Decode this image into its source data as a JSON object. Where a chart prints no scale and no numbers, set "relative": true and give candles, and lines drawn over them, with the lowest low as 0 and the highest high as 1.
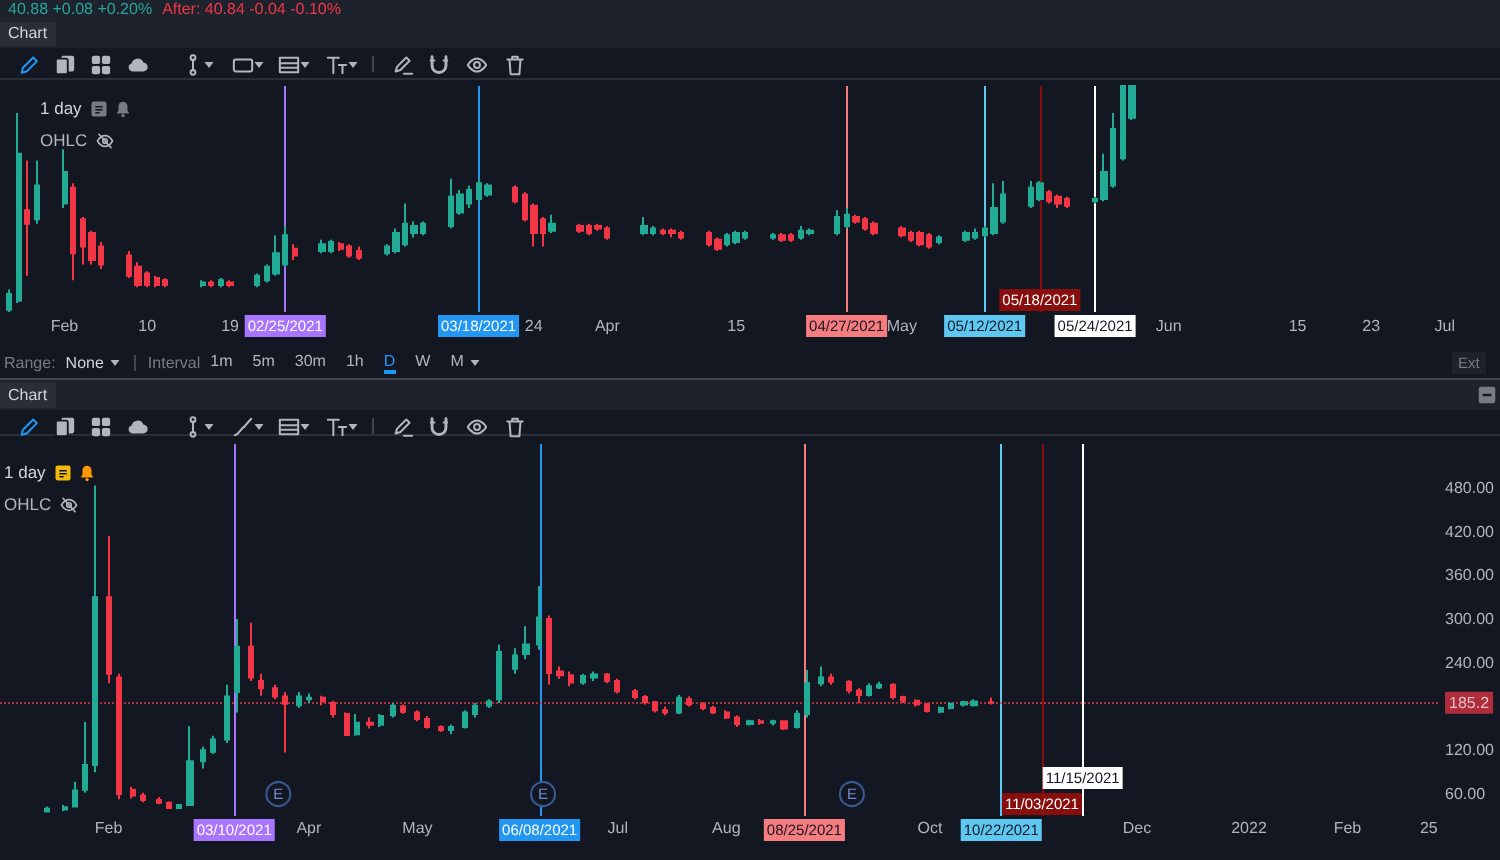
{
  "chart_data": [
    {
      "type": "candlestick",
      "title": "1 day",
      "annotations": [
        "40.88 +0.08 +0.20%",
        "After: 40.84 -0.04 -0.10%",
        "Chart",
        "OHLC",
        "Range:",
        "None",
        "Interval",
        "1m",
        "5m",
        "30m",
        "1h",
        "D",
        "W",
        "M",
        "Ext"
      ],
      "relative": true,
      "xlim": [
        "2021-01-25",
        "2021-07-07"
      ],
      "xticks": [
        {
          "value": "2021-02-01",
          "label": "Feb"
        },
        {
          "value": "2021-02-10",
          "label": "10"
        },
        {
          "value": "2021-02-19",
          "label": "19"
        },
        {
          "value": "2021-03-24",
          "label": "24"
        },
        {
          "value": "2021-04-01",
          "label": "Apr"
        },
        {
          "value": "2021-04-15",
          "label": "15"
        },
        {
          "value": "2021-05-03",
          "label": "May"
        },
        {
          "value": "2021-06-01",
          "label": "Jun"
        },
        {
          "value": "2021-06-15",
          "label": "15"
        },
        {
          "value": "2021-06-23",
          "label": "23"
        },
        {
          "value": "2021-07-01",
          "label": "Jul"
        }
      ],
      "ref_lines": [
        {
          "axis": "x",
          "value": "2021-02-25",
          "label": "02/25/2021",
          "color": "#a875ff"
        },
        {
          "axis": "x",
          "value": "2021-03-18",
          "label": "03/18/2021",
          "color": "#2196f3"
        },
        {
          "axis": "x",
          "value": "2021-04-27",
          "label": "04/27/2021",
          "color": "#f77c80"
        },
        {
          "axis": "x",
          "value": "2021-05-12",
          "label": "05/12/2021",
          "color": "#5ec8f2"
        },
        {
          "axis": "x",
          "value": "2021-05-18",
          "label": "05/18/2021",
          "color": "#880e0e"
        },
        {
          "axis": "x",
          "value": "2021-05-24",
          "label": "05/24/2021",
          "color": "#ffffff"
        }
      ],
      "x": [
        "2021-01-26",
        "2021-01-27",
        "2021-01-28",
        "2021-01-29",
        "2021-02-01",
        "2021-02-02",
        "2021-02-03",
        "2021-02-04",
        "2021-02-05",
        "2021-02-08",
        "2021-02-09",
        "2021-02-10",
        "2021-02-11",
        "2021-02-12",
        "2021-02-16",
        "2021-02-17",
        "2021-02-18",
        "2021-02-19",
        "2021-02-22",
        "2021-02-23",
        "2021-02-24",
        "2021-02-25",
        "2021-02-26",
        "2021-03-01",
        "2021-03-02",
        "2021-03-03",
        "2021-03-04",
        "2021-03-05",
        "2021-03-08",
        "2021-03-09",
        "2021-03-10",
        "2021-03-11",
        "2021-03-12",
        "2021-03-15",
        "2021-03-16",
        "2021-03-17",
        "2021-03-18",
        "2021-03-19",
        "2021-03-22",
        "2021-03-23",
        "2021-03-24",
        "2021-03-25",
        "2021-03-26",
        "2021-03-29",
        "2021-03-30",
        "2021-03-31",
        "2021-04-01",
        "2021-04-05",
        "2021-04-06",
        "2021-04-07",
        "2021-04-08",
        "2021-04-09",
        "2021-04-12",
        "2021-04-13",
        "2021-04-14",
        "2021-04-15",
        "2021-04-16",
        "2021-04-19",
        "2021-04-20",
        "2021-04-21",
        "2021-04-22",
        "2021-04-23",
        "2021-04-26",
        "2021-04-27",
        "2021-04-28",
        "2021-04-29",
        "2021-04-30",
        "2021-05-03",
        "2021-05-04",
        "2021-05-05",
        "2021-05-06",
        "2021-05-07",
        "2021-05-10",
        "2021-05-11",
        "2021-05-12",
        "2021-05-13",
        "2021-05-14",
        "2021-05-17",
        "2021-05-18",
        "2021-05-19",
        "2021-05-20",
        "2021-05-21",
        "2021-05-24",
        "2021-05-25",
        "2021-05-26",
        "2021-05-27",
        "2021-05-28"
      ],
      "ohlc": [
        [
          0.01,
          0.1,
          0,
          0.08
        ],
        [
          0.05,
          0.88,
          0.04,
          0.7
        ],
        [
          0.45,
          0.67,
          0.16,
          0.39
        ],
        [
          0.41,
          0.67,
          0.39,
          0.56
        ],
        [
          0.48,
          0.72,
          0.46,
          0.62
        ],
        [
          0.55,
          0.57,
          0.14,
          0.26
        ],
        [
          0.41,
          0.42,
          0.21,
          0.29
        ],
        [
          0.35,
          0.36,
          0.21,
          0.23
        ],
        [
          0.29,
          0.31,
          0.19,
          0.21
        ],
        [
          0.25,
          0.27,
          0.15,
          0.16
        ],
        [
          0.2,
          0.22,
          0.11,
          0.12
        ],
        [
          0.17,
          0.18,
          0.11,
          0.12
        ],
        [
          0.15,
          0.16,
          0.11,
          0.12
        ],
        [
          0.14,
          0.15,
          0.11,
          0.12
        ],
        [
          0.12,
          0.14,
          0.11,
          0.13
        ],
        [
          0.13,
          0.14,
          0.11,
          0.12
        ],
        [
          0.12,
          0.15,
          0.11,
          0.14
        ],
        [
          0.13,
          0.14,
          0.11,
          0.12
        ],
        [
          0.12,
          0.17,
          0.11,
          0.16
        ],
        [
          0.14,
          0.21,
          0.13,
          0.2
        ],
        [
          0.17,
          0.34,
          0.16,
          0.26
        ],
        [
          0.21,
          0.38,
          0.2,
          0.34
        ],
        [
          0.28,
          0.3,
          0.23,
          0.25
        ],
        [
          0.27,
          0.32,
          0.26,
          0.3
        ],
        [
          0.27,
          0.32,
          0.26,
          0.31
        ],
        [
          0.3,
          0.31,
          0.27,
          0.28
        ],
        [
          0.29,
          0.3,
          0.24,
          0.25
        ],
        [
          0.27,
          0.29,
          0.23,
          0.24
        ],
        [
          0.26,
          0.3,
          0.25,
          0.29
        ],
        [
          0.27,
          0.37,
          0.26,
          0.35
        ],
        [
          0.3,
          0.48,
          0.29,
          0.39
        ],
        [
          0.35,
          0.4,
          0.33,
          0.38
        ],
        [
          0.35,
          0.4,
          0.34,
          0.39
        ],
        [
          0.38,
          0.59,
          0.37,
          0.51
        ],
        [
          0.44,
          0.54,
          0.43,
          0.52
        ],
        [
          0.48,
          0.56,
          0.46,
          0.54
        ],
        [
          0.5,
          0.59,
          0.49,
          0.57
        ],
        [
          0.52,
          0.57,
          0.51,
          0.56
        ],
        [
          0.55,
          0.56,
          0.48,
          0.49
        ],
        [
          0.52,
          0.53,
          0.4,
          0.41
        ],
        [
          0.47,
          0.48,
          0.29,
          0.35
        ],
        [
          0.41,
          0.42,
          0.29,
          0.35
        ],
        [
          0.36,
          0.43,
          0.35,
          0.39
        ],
        [
          0.38,
          0.39,
          0.35,
          0.36
        ],
        [
          0.38,
          0.39,
          0.34,
          0.35
        ],
        [
          0.38,
          0.39,
          0.36,
          0.37
        ],
        [
          0.37,
          0.38,
          0.32,
          0.33
        ],
        [
          0.35,
          0.42,
          0.34,
          0.38
        ],
        [
          0.35,
          0.38,
          0.34,
          0.37
        ],
        [
          0.36,
          0.37,
          0.34,
          0.35
        ],
        [
          0.36,
          0.37,
          0.33,
          0.35
        ],
        [
          0.35,
          0.36,
          0.32,
          0.33
        ],
        [
          0.35,
          0.36,
          0.29,
          0.3
        ],
        [
          0.32,
          0.33,
          0.27,
          0.28
        ],
        [
          0.3,
          0.35,
          0.29,
          0.34
        ],
        [
          0.31,
          0.36,
          0.3,
          0.35
        ],
        [
          0.33,
          0.36,
          0.32,
          0.35
        ],
        [
          0.33,
          0.35,
          0.32,
          0.34
        ],
        [
          0.34,
          0.35,
          0.31,
          0.32
        ],
        [
          0.34,
          0.35,
          0.31,
          0.32
        ],
        [
          0.33,
          0.38,
          0.32,
          0.36
        ],
        [
          0.35,
          0.37,
          0.34,
          0.36
        ],
        [
          0.35,
          0.45,
          0.34,
          0.42
        ],
        [
          0.38,
          0.46,
          0.37,
          0.43
        ],
        [
          0.42,
          0.43,
          0.39,
          0.4
        ],
        [
          0.41,
          0.42,
          0.36,
          0.37
        ],
        [
          0.39,
          0.4,
          0.34,
          0.35
        ],
        [
          0.37,
          0.38,
          0.33,
          0.34
        ],
        [
          0.35,
          0.36,
          0.31,
          0.32
        ],
        [
          0.35,
          0.36,
          0.29,
          0.3
        ],
        [
          0.34,
          0.35,
          0.28,
          0.29
        ],
        [
          0.31,
          0.34,
          0.3,
          0.33
        ],
        [
          0.32,
          0.36,
          0.31,
          0.35
        ],
        [
          0.33,
          0.37,
          0.32,
          0.35
        ],
        [
          0.34,
          0.38,
          0.33,
          0.37
        ],
        [
          0.35,
          0.57,
          0.34,
          0.46
        ],
        [
          0.4,
          0.58,
          0.39,
          0.52
        ],
        [
          0.47,
          0.58,
          0.46,
          0.55
        ],
        [
          0.5,
          0.58,
          0.49,
          0.57
        ],
        [
          0.53,
          0.54,
          0.48,
          0.49
        ],
        [
          0.51,
          0.52,
          0.46,
          0.48
        ],
        [
          0.5,
          0.51,
          0.46,
          0.47
        ],
        [
          0.49,
          0.51,
          0.48,
          0.5
        ],
        [
          0.5,
          0.7,
          0.49,
          0.62
        ],
        [
          0.56,
          0.88,
          0.55,
          0.81
        ],
        [
          0.68,
          1,
          0.67,
          1
        ],
        [
          0.86,
          1,
          0.85,
          1
        ]
      ],
      "colors": [
        "#22ab94",
        "#22ab94",
        "#f23645",
        "#22ab94",
        "#22ab94",
        "#f23645",
        "#f23645",
        "#f23645",
        "#f23645",
        "#f23645",
        "#f23645",
        "#f23645",
        "#f23645",
        "#f23645",
        "#22ab94",
        "#f23645",
        "#22ab94",
        "#f23645",
        "#22ab94",
        "#22ab94",
        "#22ab94",
        "#22ab94",
        "#f23645",
        "#22ab94",
        "#22ab94",
        "#f23645",
        "#f23645",
        "#f23645",
        "#22ab94",
        "#22ab94",
        "#22ab94",
        "#22ab94",
        "#22ab94",
        "#22ab94",
        "#22ab94",
        "#22ab94",
        "#22ab94",
        "#22ab94",
        "#f23645",
        "#f23645",
        "#f23645",
        "#f23645",
        "#22ab94",
        "#f23645",
        "#f23645",
        "#f23645",
        "#f23645",
        "#22ab94",
        "#22ab94",
        "#f23645",
        "#f23645",
        "#f23645",
        "#f23645",
        "#f23645",
        "#22ab94",
        "#22ab94",
        "#22ab94",
        "#22ab94",
        "#f23645",
        "#f23645",
        "#22ab94",
        "#22ab94",
        "#22ab94",
        "#22ab94",
        "#f23645",
        "#f23645",
        "#f23645",
        "#f23645",
        "#f23645",
        "#f23645",
        "#f23645",
        "#22ab94",
        "#22ab94",
        "#22ab94",
        "#22ab94",
        "#22ab94",
        "#22ab94",
        "#22ab94",
        "#22ab94",
        "#f23645",
        "#f23645",
        "#f23645",
        "#22ab94",
        "#22ab94",
        "#22ab94",
        "#22ab94",
        "#22ab94"
      ]
    },
    {
      "type": "candlestick",
      "title": "1 day",
      "annotations": [
        "Chart",
        "OHLC",
        {
          "text": "E",
          "x": "2021-03-23"
        },
        {
          "text": "E",
          "x": "2021-06-09"
        },
        {
          "text": "E",
          "x": "2021-09-08"
        }
      ],
      "xlim": [
        "2020-12-31",
        "2022-02-28"
      ],
      "xticks": [
        {
          "value": "2021-02-01",
          "label": "Feb"
        },
        {
          "value": "2021-04-01",
          "label": "Apr"
        },
        {
          "value": "2021-05-03",
          "label": "May"
        },
        {
          "value": "2021-07-01",
          "label": "Jul"
        },
        {
          "value": "2021-08-02",
          "label": "Aug"
        },
        {
          "value": "2021-10-01",
          "label": "Oct"
        },
        {
          "value": "2021-12-01",
          "label": "Dec"
        },
        {
          "value": "2022-01-03",
          "label": "2022"
        },
        {
          "value": "2022-02-01",
          "label": "Feb"
        },
        {
          "value": "2022-02-25",
          "label": "25"
        }
      ],
      "ylim": [
        30,
        540
      ],
      "yticks": [
        {
          "value": 60,
          "label": "60.00"
        },
        {
          "value": 120,
          "label": "120.00"
        },
        {
          "value": 240,
          "label": "240.00"
        },
        {
          "value": 300,
          "label": "300.00"
        },
        {
          "value": 360,
          "label": "360.00"
        },
        {
          "value": 420,
          "label": "420.00"
        },
        {
          "value": 480,
          "label": "480.00"
        }
      ],
      "ref_lines": [
        {
          "axis": "x",
          "value": "2021-03-10",
          "label": "03/10/2021",
          "color": "#a875ff"
        },
        {
          "axis": "x",
          "value": "2021-06-08",
          "label": "06/08/2021",
          "color": "#2196f3"
        },
        {
          "axis": "x",
          "value": "2021-08-25",
          "label": "08/25/2021",
          "color": "#f77c80"
        },
        {
          "axis": "x",
          "value": "2021-10-22",
          "label": "10/22/2021",
          "color": "#5ec8f2"
        },
        {
          "axis": "x",
          "value": "2021-11-03",
          "label": "11/03/2021",
          "color": "#880e0e"
        },
        {
          "axis": "x",
          "value": "2021-11-15",
          "label": "11/15/2021",
          "color": "#ffffff"
        },
        {
          "axis": "y",
          "value": 185.2,
          "label": "185.2",
          "color": "#f23645",
          "line_style": "dotted"
        }
      ],
      "x": [
        "2021-01-14",
        "2021-01-19",
        "2021-01-22",
        "2021-01-25",
        "2021-01-28",
        "2021-02-01",
        "2021-02-04",
        "2021-02-08",
        "2021-02-11",
        "2021-02-16",
        "2021-02-19",
        "2021-02-22",
        "2021-02-25",
        "2021-03-01",
        "2021-03-04",
        "2021-03-08",
        "2021-03-11",
        "2021-03-15",
        "2021-03-18",
        "2021-03-22",
        "2021-03-25",
        "2021-03-29",
        "2021-04-01",
        "2021-04-05",
        "2021-04-08",
        "2021-04-12",
        "2021-04-15",
        "2021-04-19",
        "2021-04-22",
        "2021-04-26",
        "2021-04-29",
        "2021-05-03",
        "2021-05-06",
        "2021-05-10",
        "2021-05-13",
        "2021-05-17",
        "2021-05-20",
        "2021-05-24",
        "2021-05-27",
        "2021-06-01",
        "2021-06-04",
        "2021-06-08",
        "2021-06-11",
        "2021-06-14",
        "2021-06-17",
        "2021-06-21",
        "2021-06-24",
        "2021-06-28",
        "2021-07-01",
        "2021-07-06",
        "2021-07-09",
        "2021-07-12",
        "2021-07-15",
        "2021-07-19",
        "2021-07-22",
        "2021-07-26",
        "2021-07-29",
        "2021-08-02",
        "2021-08-05",
        "2021-08-09",
        "2021-08-12",
        "2021-08-16",
        "2021-08-19",
        "2021-08-23",
        "2021-08-26",
        "2021-08-30",
        "2021-09-02",
        "2021-09-07",
        "2021-09-10",
        "2021-09-13",
        "2021-09-16",
        "2021-09-20",
        "2021-09-23",
        "2021-09-27",
        "2021-09-30",
        "2021-10-04",
        "2021-10-07",
        "2021-10-11",
        "2021-10-14",
        "2021-10-19"
      ],
      "ohlc": [
        [
          36,
          43,
          35,
          40
        ],
        [
          39,
          45,
          37,
          42
        ],
        [
          43,
          77,
          42,
          65
        ],
        [
          66,
          159,
          62,
          100
        ],
        [
          100,
          483,
          90,
          330
        ],
        [
          330,
          414,
          212,
          225
        ],
        [
          220,
          225,
          53,
          60
        ],
        [
          66,
          70,
          54,
          58
        ],
        [
          58,
          62,
          49,
          52
        ],
        [
          52,
          56,
          46,
          48
        ],
        [
          48,
          50,
          40,
          41
        ],
        [
          41,
          46,
          40,
          45
        ],
        [
          45,
          153,
          44,
          105
        ],
        [
          105,
          125,
          95,
          120
        ],
        [
          118,
          140,
          115,
          135
        ],
        [
          135,
          210,
          130,
          194
        ],
        [
          200,
          300,
          172,
          262
        ],
        [
          262,
          295,
          215,
          220
        ],
        [
          215,
          225,
          195,
          205
        ],
        [
          205,
          210,
          190,
          194
        ],
        [
          194,
          200,
          117,
          184
        ],
        [
          182,
          200,
          178,
          194
        ],
        [
          190,
          198,
          185,
          192
        ],
        [
          192,
          195,
          182,
          187
        ],
        [
          185,
          188,
          165,
          170
        ],
        [
          170,
          172,
          140,
          141
        ],
        [
          142,
          170,
          140,
          158
        ],
        [
          158,
          165,
          150,
          155
        ],
        [
          155,
          170,
          152,
          167
        ],
        [
          168,
          185,
          165,
          181
        ],
        [
          180,
          183,
          170,
          173
        ],
        [
          172,
          175,
          160,
          163
        ],
        [
          163,
          167,
          150,
          152
        ],
        [
          152,
          154,
          145,
          148
        ],
        [
          148,
          155,
          142,
          152
        ],
        [
          152,
          175,
          150,
          172
        ],
        [
          170,
          185,
          165,
          181
        ],
        [
          181,
          190,
          178,
          187
        ],
        [
          190,
          265,
          185,
          255
        ],
        [
          232,
          260,
          225,
          250
        ],
        [
          252,
          290,
          245,
          265
        ],
        [
          265,
          345,
          258,
          302
        ],
        [
          300,
          305,
          210,
          226
        ],
        [
          228,
          235,
          218,
          223
        ],
        [
          223,
          228,
          208,
          213
        ],
        [
          213,
          225,
          210,
          222
        ],
        [
          220,
          228,
          215,
          224
        ],
        [
          224,
          226,
          212,
          215
        ],
        [
          215,
          218,
          198,
          201
        ],
        [
          201,
          204,
          190,
          193
        ],
        [
          193,
          196,
          183,
          186
        ],
        [
          186,
          188,
          172,
          175
        ],
        [
          175,
          180,
          168,
          172
        ],
        [
          172,
          196,
          170,
          192
        ],
        [
          190,
          194,
          180,
          183
        ],
        [
          183,
          186,
          175,
          178
        ],
        [
          178,
          181,
          170,
          172
        ],
        [
          172,
          175,
          163,
          165
        ],
        [
          165,
          168,
          152,
          156
        ],
        [
          156,
          162,
          154,
          160
        ],
        [
          160,
          163,
          155,
          158
        ],
        [
          158,
          162,
          154,
          160
        ],
        [
          160,
          161,
          148,
          150
        ],
        [
          152,
          175,
          150,
          170
        ],
        [
          170,
          230,
          165,
          212
        ],
        [
          212,
          235,
          208,
          220
        ],
        [
          220,
          225,
          210,
          214
        ],
        [
          214,
          216,
          198,
          202
        ],
        [
          202,
          205,
          185,
          196
        ],
        [
          196,
          212,
          194,
          208
        ],
        [
          206,
          214,
          204,
          210
        ],
        [
          210,
          212,
          190,
          193
        ],
        [
          193,
          195,
          185,
          188
        ],
        [
          188,
          190,
          180,
          183
        ],
        [
          183,
          185,
          172,
          174
        ],
        [
          173,
          180,
          171,
          178
        ],
        [
          178,
          186,
          176,
          184
        ],
        [
          183,
          188,
          180,
          186
        ],
        [
          182,
          190,
          180,
          187
        ],
        [
          186,
          192,
          183,
          185.2
        ]
      ],
      "colors": [
        "#22ab94",
        "#22ab94",
        "#22ab94",
        "#22ab94",
        "#22ab94",
        "#f23645",
        "#f23645",
        "#f23645",
        "#f23645",
        "#f23645",
        "#f23645",
        "#22ab94",
        "#22ab94",
        "#22ab94",
        "#22ab94",
        "#22ab94",
        "#22ab94",
        "#f23645",
        "#f23645",
        "#f23645",
        "#f23645",
        "#22ab94",
        "#22ab94",
        "#f23645",
        "#f23645",
        "#f23645",
        "#22ab94",
        "#f23645",
        "#22ab94",
        "#22ab94",
        "#f23645",
        "#f23645",
        "#f23645",
        "#f23645",
        "#22ab94",
        "#22ab94",
        "#22ab94",
        "#22ab94",
        "#22ab94",
        "#22ab94",
        "#22ab94",
        "#22ab94",
        "#f23645",
        "#f23645",
        "#f23645",
        "#22ab94",
        "#22ab94",
        "#f23645",
        "#f23645",
        "#f23645",
        "#f23645",
        "#f23645",
        "#f23645",
        "#22ab94",
        "#f23645",
        "#f23645",
        "#f23645",
        "#f23645",
        "#f23645",
        "#22ab94",
        "#f23645",
        "#22ab94",
        "#f23645",
        "#22ab94",
        "#22ab94",
        "#22ab94",
        "#f23645",
        "#f23645",
        "#f23645",
        "#22ab94",
        "#22ab94",
        "#f23645",
        "#f23645",
        "#f23645",
        "#f23645",
        "#22ab94",
        "#22ab94",
        "#22ab94",
        "#22ab94",
        "#f23645"
      ]
    }
  ]
}
